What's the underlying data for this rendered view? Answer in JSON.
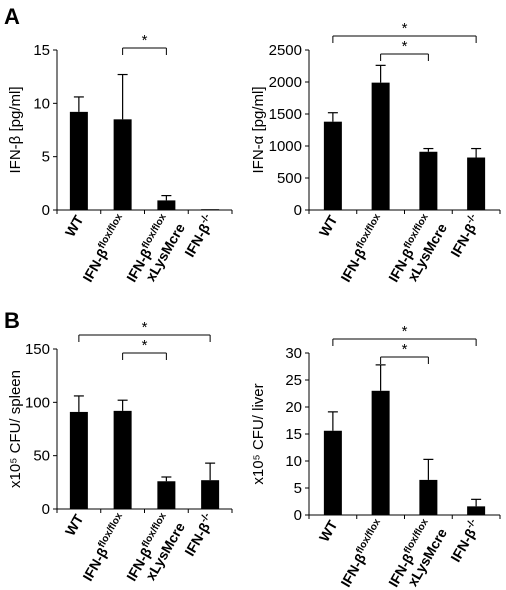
{
  "panels": [
    {
      "letter": "A"
    },
    {
      "letter": "B"
    }
  ],
  "chart_data": [
    {
      "type": "bar",
      "panel": "A",
      "title": "",
      "xlabel": "",
      "ylabel": "IFN-β [pg/ml]",
      "ylim": [
        0,
        15
      ],
      "yticks": [
        0,
        5,
        10,
        15
      ],
      "grid": false,
      "categories": [
        {
          "main": "WT",
          "sup": "",
          "line2": ""
        },
        {
          "main": "IFN-β",
          "sup": "flox/flox",
          "line2": ""
        },
        {
          "main": "IFN-β",
          "sup": "flox/flox",
          "line2": "xLysMcre"
        },
        {
          "main": "IFN-β",
          "sup": "-/-",
          "line2": ""
        }
      ],
      "values": [
        9.2,
        8.5,
        0.9,
        0.05
      ],
      "errors": [
        1.4,
        4.2,
        0.45,
        0
      ],
      "significance": [
        {
          "from": 1,
          "to": 2,
          "label": "*"
        }
      ]
    },
    {
      "type": "bar",
      "panel": "A",
      "title": "",
      "xlabel": "",
      "ylabel": "IFN-α [pg/ml]",
      "ylim": [
        0,
        2500
      ],
      "yticks": [
        0,
        500,
        1000,
        1500,
        2000,
        2500
      ],
      "grid": false,
      "categories": [
        {
          "main": "WT",
          "sup": "",
          "line2": ""
        },
        {
          "main": "IFN-β",
          "sup": "flox/flox",
          "line2": ""
        },
        {
          "main": "IFN-β",
          "sup": "flox/flox",
          "line2": "xLysMcre"
        },
        {
          "main": "IFN-β",
          "sup": "-/-",
          "line2": ""
        }
      ],
      "values": [
        1380,
        1990,
        910,
        820
      ],
      "errors": [
        140,
        270,
        50,
        140
      ],
      "significance": [
        {
          "from": 0,
          "to": 3,
          "label": "*"
        },
        {
          "from": 1,
          "to": 2,
          "label": "*"
        }
      ]
    },
    {
      "type": "bar",
      "panel": "B",
      "title": "",
      "xlabel": "",
      "ylabel": "x10⁵ CFU/ spleen",
      "ylim": [
        0,
        150
      ],
      "yticks": [
        0,
        50,
        100,
        150
      ],
      "grid": false,
      "categories": [
        {
          "main": "WT",
          "sup": "",
          "line2": ""
        },
        {
          "main": "IFN-β",
          "sup": "flox/flox",
          "line2": ""
        },
        {
          "main": "IFN-β",
          "sup": "flox/flox",
          "line2": "xLysMcre"
        },
        {
          "main": "IFN-β",
          "sup": "-/-",
          "line2": ""
        }
      ],
      "values": [
        91,
        92,
        26,
        27
      ],
      "errors": [
        15,
        10,
        4,
        16
      ],
      "significance": [
        {
          "from": 0,
          "to": 3,
          "label": "*"
        },
        {
          "from": 1,
          "to": 2,
          "label": "*"
        }
      ]
    },
    {
      "type": "bar",
      "panel": "B",
      "title": "",
      "xlabel": "",
      "ylabel": "x10⁵ CFU/ liver",
      "ylim": [
        0,
        30
      ],
      "yticks": [
        0,
        5,
        10,
        15,
        20,
        25,
        30
      ],
      "grid": false,
      "categories": [
        {
          "main": "WT",
          "sup": "",
          "line2": ""
        },
        {
          "main": "IFN-β",
          "sup": "flox/flox",
          "line2": ""
        },
        {
          "main": "IFN-β",
          "sup": "flox/flox",
          "line2": "xLysMcre"
        },
        {
          "main": "IFN-β",
          "sup": "-/-",
          "line2": ""
        }
      ],
      "values": [
        15.6,
        23,
        6.5,
        1.6
      ],
      "errors": [
        3.5,
        4.8,
        3.8,
        1.3
      ],
      "significance": [
        {
          "from": 0,
          "to": 3,
          "label": "*"
        },
        {
          "from": 1,
          "to": 2,
          "label": "*"
        }
      ]
    }
  ]
}
